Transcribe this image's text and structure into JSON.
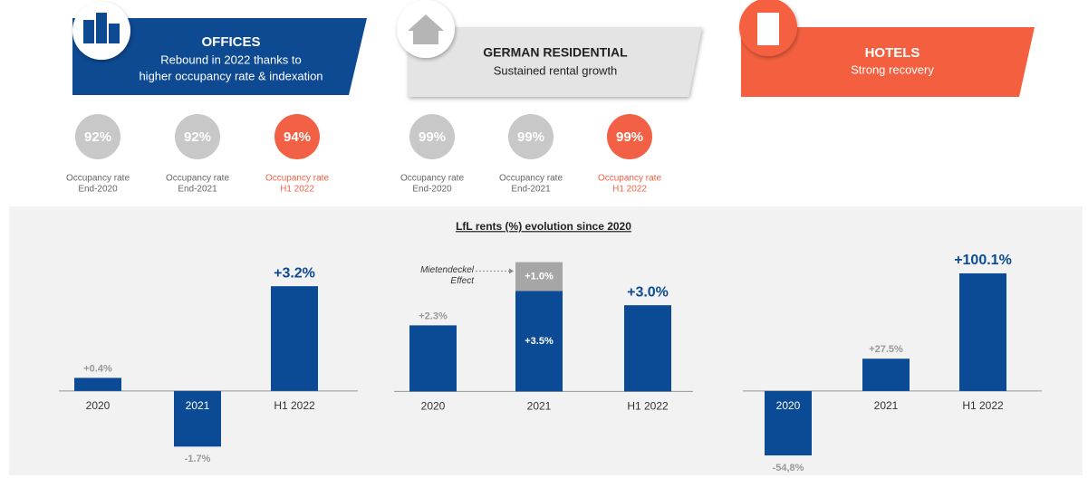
{
  "sectors": [
    {
      "title": "OFFICES",
      "subtitle": [
        "Rebound in 2022 thanks to",
        "higher occupancy rate & indexation"
      ],
      "occupancy": [
        {
          "value": "92%",
          "label": [
            "Occupancy rate",
            "End-2020"
          ],
          "color": "#c8c8c8"
        },
        {
          "value": "92%",
          "label": [
            "Occupancy rate",
            "End-2021"
          ],
          "color": "#c8c8c8"
        },
        {
          "value": "94%",
          "label": [
            "Occupancy rate",
            "H1 2022"
          ],
          "color": "#f26145"
        }
      ]
    },
    {
      "title": "GERMAN RESIDENTIAL",
      "subtitle": [
        "Sustained rental growth"
      ],
      "occupancy": [
        {
          "value": "99%",
          "label": [
            "Occupancy rate",
            "End-2020"
          ],
          "color": "#c8c8c8"
        },
        {
          "value": "99%",
          "label": [
            "Occupancy rate",
            "End-2021"
          ],
          "color": "#c8c8c8"
        },
        {
          "value": "99%",
          "label": [
            "Occupancy rate",
            "H1 2022"
          ],
          "color": "#f26145"
        }
      ]
    },
    {
      "title": "HOTELS",
      "subtitle": [
        "Strong recovery"
      ]
    }
  ],
  "chart_title": "LfL rents (%) evolution since 2020",
  "chart_data": [
    {
      "type": "bar",
      "categories": [
        "2020",
        "2021",
        "H1 2022"
      ],
      "series": [
        {
          "color": "#0b4a94",
          "values": [
            0.4,
            -1.7,
            3.2
          ],
          "value_labels": [
            "+0.4%",
            "-1.7%",
            "+3.2%"
          ]
        }
      ],
      "ylim": [
        -2.3,
        4.2
      ]
    },
    {
      "type": "bar",
      "categories": [
        "2020",
        "2021",
        "H1 2022"
      ],
      "series": [
        {
          "color": "#0b4a94",
          "values": [
            2.3,
            3.5,
            3.0
          ],
          "value_labels": [
            "+2.3%",
            "+3.5%",
            "+3.0%"
          ]
        },
        {
          "name": "Mietendeckel Effect",
          "color": "#a6a6a6",
          "values": [
            null,
            1.0,
            null
          ],
          "value_labels": [
            null,
            "+1.0%",
            null
          ]
        }
      ],
      "ylim": [
        -2.6,
        4.8
      ]
    },
    {
      "type": "bar",
      "categories": [
        "2020",
        "2021",
        "H1 2022"
      ],
      "series": [
        {
          "color": "#0b4a94",
          "values": [
            -54.8,
            27.5,
            100.1
          ],
          "value_labels": [
            "-54,8%",
            "+27.5%",
            "+100.1%"
          ]
        }
      ],
      "ylim": [
        -64,
        117
      ]
    }
  ]
}
